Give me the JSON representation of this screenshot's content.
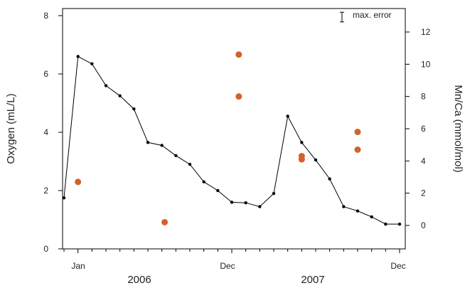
{
  "chart_data": {
    "type": "line",
    "title": "",
    "xlabel": "",
    "x_tick_labels": [
      "Jan",
      "Dec",
      "Dec"
    ],
    "x_tick_label_values": [
      1,
      12,
      24
    ],
    "year_labels": [
      "2006",
      "2007"
    ],
    "ylabel_left": "Oxygen (mL/L)",
    "ylabel_right": "Mn/Ca (mmol/mol)",
    "ylim_left": [
      0,
      8
    ],
    "ylim_right": [
      -1.5,
      13.5
    ],
    "yticks_left": [
      0,
      2,
      4,
      6,
      8
    ],
    "yticks_right": [
      0,
      2,
      4,
      6,
      8,
      10,
      12
    ],
    "xlim": [
      0,
      24
    ],
    "grid": false,
    "legend": {
      "label": "max. error",
      "placement": "top-right",
      "error_bar_halfwidth": 0.3
    },
    "series": [
      {
        "name": "Oxygen",
        "axis": "left",
        "style": "line-with-dots",
        "color": "#000000",
        "x": [
          0,
          1,
          2,
          3,
          4,
          5,
          6,
          7,
          8,
          9,
          10,
          11,
          12,
          13,
          14,
          15,
          16,
          17,
          18,
          19,
          20,
          21,
          22,
          23,
          24
        ],
        "y": [
          1.75,
          6.6,
          6.35,
          5.6,
          5.25,
          4.8,
          3.65,
          3.55,
          3.2,
          2.9,
          2.3,
          2.0,
          1.6,
          1.58,
          1.45,
          1.9,
          4.55,
          3.65,
          3.05,
          2.4,
          1.45,
          1.3,
          1.1,
          0.85,
          0.85
        ]
      },
      {
        "name": "Mn/Ca",
        "axis": "right",
        "style": "points",
        "color": "#d2622a",
        "x": [
          1,
          7.2,
          12.5,
          12.5,
          17,
          17,
          21,
          21
        ],
        "y": [
          2.7,
          0.2,
          10.6,
          8.0,
          4.3,
          4.1,
          5.8,
          4.7
        ]
      }
    ]
  }
}
